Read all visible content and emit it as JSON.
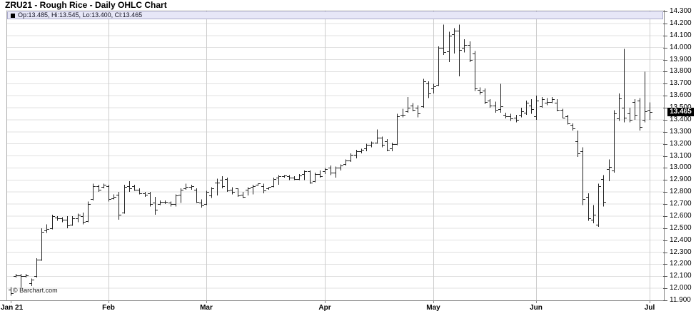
{
  "header": {
    "title": "ZRU21 - Rough Rice - Daily OHLC Chart"
  },
  "legend": {
    "swatch": "black-square",
    "text": "Op:13.485, Hi:13.545, Lo:13.400, Cl:13.465"
  },
  "watermark": "© Barchart.com",
  "y_axis": {
    "last_price_label": "13.465",
    "labels": [
      "14.300",
      "14.200",
      "14.100",
      "14.000",
      "13.900",
      "13.800",
      "13.700",
      "13.600",
      "13.500",
      "13.400",
      "13.300",
      "13.200",
      "13.100",
      "13.000",
      "12.900",
      "12.800",
      "12.700",
      "12.600",
      "12.500",
      "12.400",
      "12.300",
      "12.200",
      "12.100",
      "12.000",
      "11.900"
    ]
  },
  "x_axis": {
    "labels": [
      {
        "text": "Jan 21",
        "bar_index": 0,
        "align": "left"
      },
      {
        "text": "Feb",
        "bar_index": 19,
        "align": "center"
      },
      {
        "text": "Mar",
        "bar_index": 38,
        "align": "center"
      },
      {
        "text": "Apr",
        "bar_index": 61,
        "align": "center"
      },
      {
        "text": "May",
        "bar_index": 82,
        "align": "center"
      },
      {
        "text": "Jun",
        "bar_index": 102,
        "align": "center"
      },
      {
        "text": "Jul",
        "bar_index": 124,
        "align": "center"
      }
    ]
  },
  "chart_data": {
    "type": "ohlc-bar",
    "title": "ZRU21 - Rough Rice - Daily OHLC Chart",
    "ylim": [
      11.9,
      14.3
    ],
    "y_step": 0.1,
    "grid": true,
    "last_bar": {
      "open": 13.485,
      "high": 13.545,
      "low": 13.4,
      "close": 13.465
    },
    "bars_ohlc": [
      [
        11.99,
        12.01,
        11.94,
        11.96
      ],
      [
        12.1,
        12.12,
        12.09,
        12.11
      ],
      [
        12.11,
        12.12,
        12.01,
        12.1
      ],
      [
        12.1,
        12.12,
        12.09,
        12.11
      ],
      [
        12.04,
        12.08,
        12.02,
        12.07
      ],
      [
        12.1,
        12.25,
        12.09,
        12.24
      ],
      [
        12.24,
        12.5,
        12.23,
        12.47
      ],
      [
        12.48,
        12.53,
        12.46,
        12.49
      ],
      [
        12.5,
        12.61,
        12.49,
        12.6
      ],
      [
        12.59,
        12.6,
        12.56,
        12.58
      ],
      [
        12.58,
        12.59,
        12.55,
        12.57
      ],
      [
        12.57,
        12.6,
        12.5,
        12.52
      ],
      [
        12.53,
        12.6,
        12.52,
        12.58
      ],
      [
        12.58,
        12.62,
        12.55,
        12.61
      ],
      [
        12.6,
        12.63,
        12.53,
        12.55
      ],
      [
        12.56,
        12.72,
        12.55,
        12.7
      ],
      [
        12.74,
        12.87,
        12.73,
        12.85
      ],
      [
        12.85,
        12.86,
        12.8,
        12.82
      ],
      [
        12.84,
        12.87,
        12.83,
        12.86
      ],
      [
        12.85,
        12.86,
        12.72,
        12.74
      ],
      [
        12.75,
        12.78,
        12.74,
        12.76
      ],
      [
        12.78,
        12.8,
        12.57,
        12.61
      ],
      [
        12.63,
        12.86,
        12.62,
        12.84
      ],
      [
        12.85,
        12.89,
        12.8,
        12.83
      ],
      [
        12.85,
        12.86,
        12.81,
        12.82
      ],
      [
        12.82,
        12.83,
        12.78,
        12.79
      ],
      [
        12.79,
        12.8,
        12.76,
        12.78
      ],
      [
        12.79,
        12.8,
        12.68,
        12.7
      ],
      [
        12.71,
        12.76,
        12.61,
        12.65
      ],
      [
        12.7,
        12.73,
        12.69,
        12.72
      ],
      [
        12.72,
        12.73,
        12.7,
        12.72
      ],
      [
        12.71,
        12.72,
        12.68,
        12.7
      ],
      [
        12.7,
        12.78,
        12.68,
        12.77
      ],
      [
        12.78,
        12.83,
        12.71,
        12.82
      ],
      [
        12.83,
        12.87,
        12.82,
        12.84
      ],
      [
        12.84,
        12.86,
        12.82,
        12.85
      ],
      [
        12.82,
        12.83,
        12.71,
        12.72
      ],
      [
        12.71,
        12.74,
        12.67,
        12.69
      ],
      [
        12.7,
        12.81,
        12.69,
        12.8
      ],
      [
        12.77,
        12.84,
        12.75,
        12.83
      ],
      [
        12.88,
        12.91,
        12.77,
        12.88
      ],
      [
        12.9,
        12.93,
        12.83,
        12.85
      ],
      [
        12.91,
        12.92,
        12.8,
        12.81
      ],
      [
        12.82,
        12.84,
        12.78,
        12.8
      ],
      [
        12.83,
        12.83,
        12.76,
        12.77
      ],
      [
        12.78,
        12.8,
        12.75,
        12.76
      ],
      [
        12.82,
        12.84,
        12.77,
        12.83
      ],
      [
        12.84,
        12.86,
        12.78,
        12.85
      ],
      [
        12.86,
        12.87,
        12.85,
        12.87
      ],
      [
        12.85,
        12.87,
        12.79,
        12.81
      ],
      [
        12.83,
        12.84,
        12.82,
        12.84
      ],
      [
        12.85,
        12.92,
        12.84,
        12.91
      ],
      [
        12.92,
        12.94,
        12.86,
        12.93
      ],
      [
        12.93,
        12.94,
        12.92,
        12.94
      ],
      [
        12.93,
        12.94,
        12.9,
        12.92
      ],
      [
        12.92,
        12.93,
        12.9,
        12.91
      ],
      [
        12.91,
        12.95,
        12.9,
        12.94
      ],
      [
        12.95,
        12.98,
        12.9,
        12.97
      ],
      [
        12.97,
        12.98,
        12.87,
        12.88
      ],
      [
        12.89,
        12.96,
        12.88,
        12.95
      ],
      [
        12.95,
        12.98,
        12.92,
        12.93
      ],
      [
        12.97,
        13.0,
        12.95,
        12.99
      ],
      [
        13.0,
        13.02,
        12.94,
        12.96
      ],
      [
        12.96,
        13.01,
        12.92,
        13.0
      ],
      [
        13.0,
        13.03,
        12.98,
        13.02
      ],
      [
        13.03,
        13.07,
        13.02,
        13.06
      ],
      [
        13.06,
        13.12,
        13.05,
        13.11
      ],
      [
        13.11,
        13.15,
        13.08,
        13.14
      ],
      [
        13.14,
        13.16,
        13.12,
        13.15
      ],
      [
        13.16,
        13.2,
        13.14,
        13.19
      ],
      [
        13.19,
        13.22,
        13.17,
        13.21
      ],
      [
        13.21,
        13.32,
        13.2,
        13.25
      ],
      [
        13.25,
        13.26,
        13.17,
        13.19
      ],
      [
        13.22,
        13.24,
        13.14,
        13.15
      ],
      [
        13.16,
        13.21,
        13.14,
        13.2
      ],
      [
        13.2,
        13.45,
        13.19,
        13.43
      ],
      [
        13.44,
        13.49,
        13.42,
        13.44
      ],
      [
        13.47,
        13.59,
        13.46,
        13.5
      ],
      [
        13.52,
        13.54,
        13.47,
        13.48
      ],
      [
        13.5,
        13.52,
        13.42,
        13.45
      ],
      [
        13.51,
        13.74,
        13.5,
        13.72
      ],
      [
        13.7,
        13.72,
        13.58,
        13.62
      ],
      [
        13.66,
        13.7,
        13.62,
        13.68
      ],
      [
        13.69,
        14.01,
        13.68,
        14.0
      ],
      [
        14.0,
        14.19,
        13.94,
        13.96
      ],
      [
        13.97,
        14.13,
        13.88,
        14.1
      ],
      [
        14.11,
        14.16,
        13.95,
        14.14
      ],
      [
        14.14,
        14.19,
        13.76,
        13.98
      ],
      [
        14.0,
        14.07,
        13.96,
        14.02
      ],
      [
        14.02,
        14.05,
        13.88,
        13.9
      ],
      [
        13.95,
        13.97,
        13.64,
        13.66
      ],
      [
        13.65,
        13.67,
        13.61,
        13.63
      ],
      [
        13.64,
        13.66,
        13.53,
        13.55
      ],
      [
        13.56,
        13.57,
        13.5,
        13.52
      ],
      [
        13.52,
        13.55,
        13.46,
        13.48
      ],
      [
        13.49,
        13.7,
        13.46,
        13.51
      ],
      [
        13.44,
        13.46,
        13.41,
        13.43
      ],
      [
        13.43,
        13.45,
        13.39,
        13.41
      ],
      [
        13.42,
        13.44,
        13.38,
        13.4
      ],
      [
        13.44,
        13.5,
        13.42,
        13.47
      ],
      [
        13.46,
        13.56,
        13.44,
        13.54
      ],
      [
        13.52,
        13.57,
        13.45,
        13.49
      ],
      [
        13.43,
        13.6,
        13.4,
        13.56
      ],
      [
        13.51,
        13.59,
        13.5,
        13.57
      ],
      [
        13.54,
        13.58,
        13.52,
        13.55
      ],
      [
        13.55,
        13.59,
        13.54,
        13.57
      ],
      [
        13.54,
        13.57,
        13.47,
        13.48
      ],
      [
        13.48,
        13.49,
        13.41,
        13.42
      ],
      [
        13.43,
        13.44,
        13.36,
        13.37
      ],
      [
        13.36,
        13.37,
        13.31,
        13.33
      ],
      [
        13.22,
        13.31,
        13.09,
        13.12
      ],
      [
        13.14,
        13.17,
        12.69,
        12.74
      ],
      [
        12.76,
        12.79,
        12.56,
        12.58
      ],
      [
        12.57,
        12.69,
        12.54,
        12.61
      ],
      [
        12.53,
        12.87,
        12.51,
        12.85
      ],
      [
        12.91,
        12.94,
        12.68,
        12.72
      ],
      [
        12.99,
        13.07,
        12.89,
        13.01
      ],
      [
        12.98,
        13.48,
        12.96,
        13.45
      ],
      [
        13.41,
        13.62,
        13.39,
        13.58
      ],
      [
        13.5,
        13.99,
        13.38,
        13.42
      ],
      [
        13.45,
        13.5,
        13.38,
        13.4
      ],
      [
        13.55,
        13.57,
        13.4,
        13.44
      ],
      [
        13.56,
        13.58,
        13.31,
        13.34
      ],
      [
        13.4,
        13.8,
        13.38,
        13.47
      ],
      [
        13.485,
        13.545,
        13.4,
        13.465
      ]
    ]
  },
  "colors": {
    "background": "#ffffff",
    "bar": "#222222",
    "grid_horizontal": "#e0e0e0",
    "grid_vertical": "#cccccc",
    "axis": "#888888",
    "legend_bg": "#e7e7f7",
    "legend_border": "#aaaacb",
    "price_badge_bg": "#000000",
    "price_badge_fg": "#ffffff",
    "text": "#000000"
  }
}
